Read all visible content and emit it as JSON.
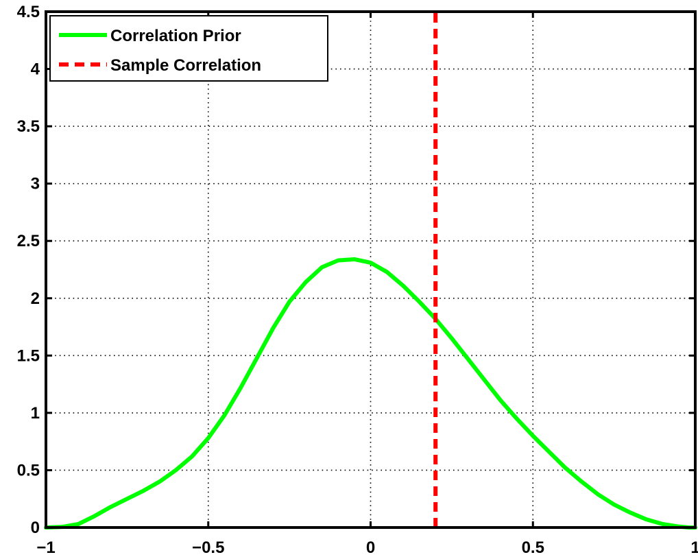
{
  "chart_data": {
    "type": "line",
    "xlim": [
      -1,
      1
    ],
    "ylim": [
      0,
      4.5
    ],
    "xticks": [
      -1,
      -0.5,
      0,
      0.5,
      1
    ],
    "xtick_labels": [
      "−1",
      "−0.5",
      "0",
      "0.5",
      "1"
    ],
    "yticks": [
      0,
      0.5,
      1,
      1.5,
      2,
      2.5,
      3,
      3.5,
      4,
      4.5
    ],
    "ytick_labels": [
      "0",
      "0.5",
      "1",
      "1.5",
      "2",
      "2.5",
      "3",
      "3.5",
      "4",
      "4.5"
    ],
    "grid": true,
    "legend_position": "top-left",
    "series": [
      {
        "name": "Correlation Prior",
        "color": "#00ff00",
        "style": "solid",
        "x": [
          -1.0,
          -0.95,
          -0.9,
          -0.85,
          -0.8,
          -0.75,
          -0.7,
          -0.65,
          -0.6,
          -0.55,
          -0.5,
          -0.45,
          -0.4,
          -0.35,
          -0.3,
          -0.25,
          -0.2,
          -0.15,
          -0.1,
          -0.05,
          0.0,
          0.05,
          0.1,
          0.15,
          0.2,
          0.25,
          0.3,
          0.35,
          0.4,
          0.45,
          0.5,
          0.55,
          0.6,
          0.65,
          0.7,
          0.75,
          0.8,
          0.85,
          0.9,
          0.95,
          0.98,
          1.0
        ],
        "y": [
          0.0,
          0.005,
          0.03,
          0.1,
          0.18,
          0.25,
          0.32,
          0.4,
          0.5,
          0.62,
          0.78,
          0.98,
          1.22,
          1.48,
          1.74,
          1.97,
          2.14,
          2.27,
          2.33,
          2.34,
          2.31,
          2.23,
          2.11,
          1.97,
          1.82,
          1.65,
          1.47,
          1.29,
          1.11,
          0.95,
          0.8,
          0.66,
          0.52,
          0.4,
          0.29,
          0.2,
          0.13,
          0.07,
          0.03,
          0.008,
          0.0,
          0.0
        ]
      },
      {
        "name": "Sample Correlation",
        "color": "#ff0000",
        "style": "dashed",
        "x": [
          0.2,
          0.2
        ],
        "y": [
          0,
          4.5
        ]
      }
    ]
  }
}
